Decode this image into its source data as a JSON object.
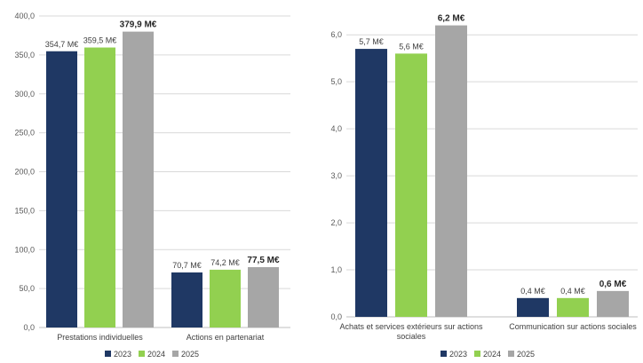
{
  "chart_data": [
    {
      "type": "bar",
      "categories": [
        "Prestations individuelles",
        "Actions en partenariat"
      ],
      "series": [
        {
          "name": "2023",
          "values": [
            354.7,
            70.7
          ],
          "labels": [
            "354,7 M€",
            "70,7 M€"
          ],
          "color": "#1f3864"
        },
        {
          "name": "2024",
          "values": [
            359.5,
            74.2
          ],
          "labels": [
            "359,5 M€",
            "74,2 M€"
          ],
          "color": "#92d050"
        },
        {
          "name": "2025",
          "values": [
            379.9,
            77.5
          ],
          "labels": [
            "379,9 M€",
            "77,5 M€"
          ],
          "color": "#a6a6a6"
        }
      ],
      "ylim": [
        0,
        400
      ],
      "yticks": [
        "0,0",
        "50,0",
        "100,0",
        "150,0",
        "200,0",
        "250,0",
        "300,0",
        "350,0",
        "400,0"
      ],
      "ytick_values": [
        0,
        50,
        100,
        150,
        200,
        250,
        300,
        350,
        400
      ],
      "grid": true,
      "legend": "bottom"
    },
    {
      "type": "bar",
      "categories": [
        "Achats et services extérieurs sur actions sociales",
        "Communication sur actions sociales"
      ],
      "series": [
        {
          "name": "2023",
          "values": [
            5.7,
            0.4
          ],
          "labels": [
            "5,7 M€",
            "0,4 M€"
          ],
          "color": "#1f3864"
        },
        {
          "name": "2024",
          "values": [
            5.6,
            0.4
          ],
          "labels": [
            "5,6 M€",
            "0,4 M€"
          ],
          "color": "#92d050"
        },
        {
          "name": "2025",
          "values": [
            6.2,
            0.55
          ],
          "labels": [
            "6,2 M€",
            "0,6 M€"
          ],
          "color": "#a6a6a6"
        }
      ],
      "ylim": [
        0,
        6.4
      ],
      "yticks": [
        "0,0",
        "1,0",
        "2,0",
        "3,0",
        "4,0",
        "5,0",
        "6,0"
      ],
      "ytick_values": [
        0,
        1,
        2,
        3,
        4,
        5,
        6
      ],
      "grid": true,
      "legend": "bottom"
    }
  ]
}
